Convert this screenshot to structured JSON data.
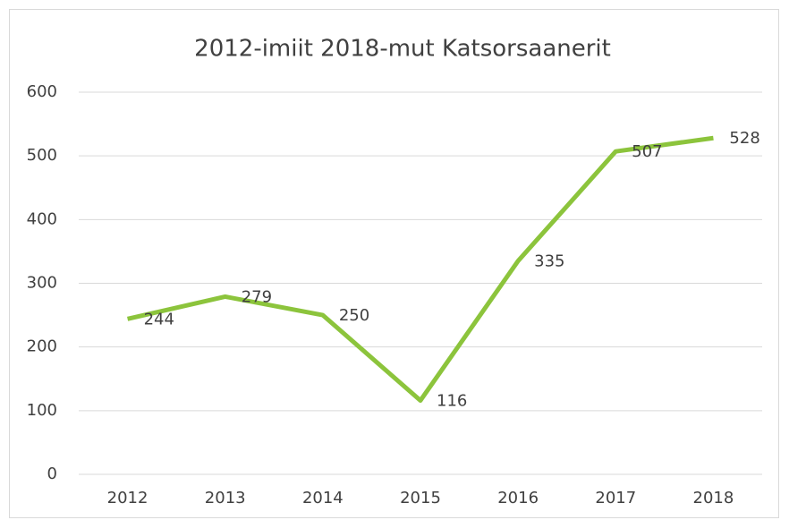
{
  "chart_data": {
    "type": "line",
    "title": "2012-imiit 2018-mut Katsorsaanerit",
    "categories": [
      "2012",
      "2013",
      "2014",
      "2015",
      "2016",
      "2017",
      "2018"
    ],
    "series": [
      {
        "name": "Katsorsaanerit",
        "color": "#8cc43c",
        "values": [
          244,
          279,
          250,
          116,
          335,
          507,
          528
        ]
      }
    ],
    "ylim": [
      0,
      600
    ],
    "yticks": [
      0,
      100,
      200,
      300,
      400,
      500,
      600
    ],
    "grid": true
  }
}
